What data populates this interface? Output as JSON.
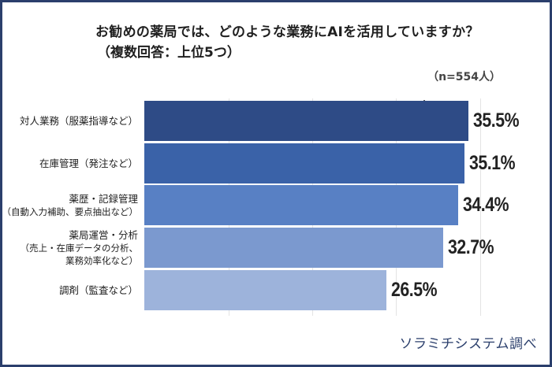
{
  "header": {
    "title": "お勧めの薬局では、どのような業務にAIを活用していますか？",
    "subtitle": "（複数回答：上位5つ）",
    "sample_size": "（n=554人）"
  },
  "footer": {
    "credit": "ソラミチシステム調べ"
  },
  "colors": {
    "frame": "#2b3f6c",
    "bars": [
      "#2e4b86",
      "#3a62a8",
      "#5880c4",
      "#7b99cf",
      "#9db3db"
    ]
  },
  "chart_data": {
    "type": "bar",
    "orientation": "horizontal",
    "title": "お勧めの薬局では、どのような業務にAIを活用していますか？（複数回答：上位5つ）",
    "subtitle": "（n=554人）",
    "categories": [
      "対人業務（服薬指導など）",
      "在庫管理（発注など）",
      "薬歴・記録管理（自動入力補助、要点抽出など）",
      "薬局運営・分析（売上・在庫データの分析、業務効率化など）",
      "調剤（監査など）"
    ],
    "values": [
      35.5,
      35.1,
      34.4,
      32.7,
      26.5
    ],
    "value_labels": [
      "35.5%",
      "35.1%",
      "34.4%",
      "32.7%",
      "26.5%"
    ],
    "unit": "%",
    "xlabel": "",
    "ylabel": "",
    "grid": true,
    "legend": null,
    "source": "ソラミチシステム調べ"
  },
  "rows": [
    {
      "label_lines": [
        "対人業務（服薬指導など）"
      ],
      "value": 35.5,
      "value_label": "35.5%"
    },
    {
      "label_lines": [
        "在庫管理（発注など）"
      ],
      "value": 35.1,
      "value_label": "35.1%"
    },
    {
      "label_lines": [
        "薬歴・記録管理",
        "（自動入力補助、要点抽出など）"
      ],
      "value": 34.4,
      "value_label": "34.4%"
    },
    {
      "label_lines": [
        "薬局運営・分析",
        "（売上・在庫データの分析、",
        "業務効率化など）"
      ],
      "value": 32.7,
      "value_label": "32.7%"
    },
    {
      "label_lines": [
        "調剤（監査など）"
      ],
      "value": 26.5,
      "value_label": "26.5%"
    }
  ]
}
